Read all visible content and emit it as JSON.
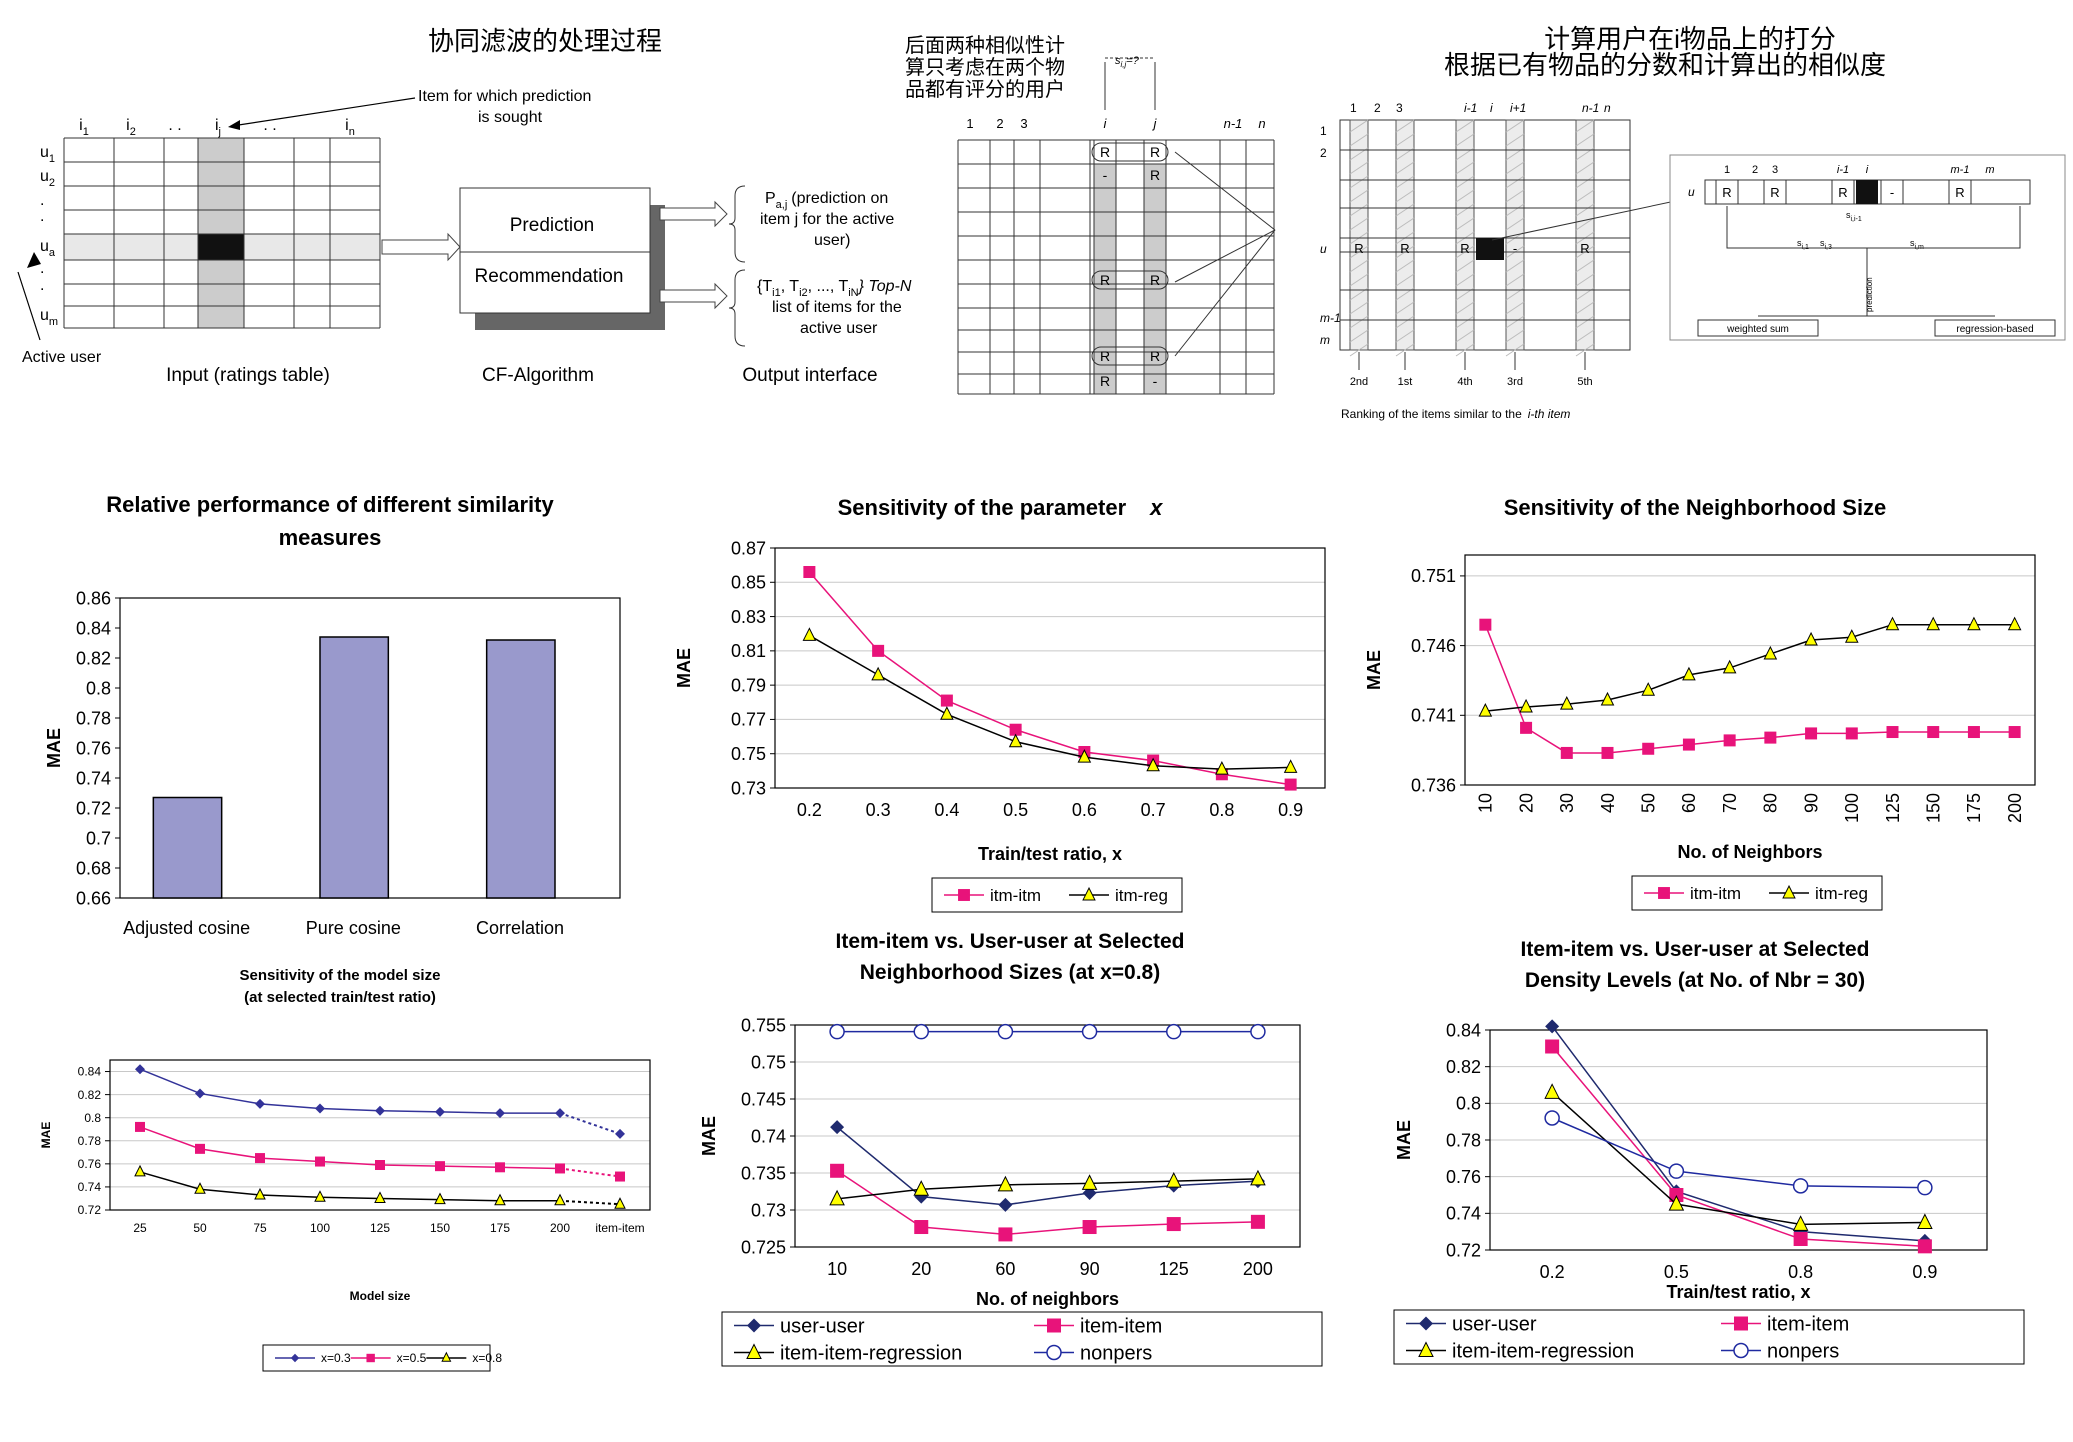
{
  "diagrams": {
    "cf_process": {
      "title": "协同滤波的处理过程",
      "annotation": [
        "Item for which prediction",
        "is sought"
      ],
      "item_labels": [
        "i",
        "i",
        ". .",
        "i",
        ". .",
        "i"
      ],
      "item_subscripts": [
        "1",
        "2",
        "",
        "j",
        "",
        "n"
      ],
      "user_labels": [
        "u",
        "u",
        ".",
        ".",
        "u",
        ".",
        ".",
        "u"
      ],
      "user_subscripts": [
        "1",
        "2",
        "",
        "",
        "a",
        "",
        "",
        "m"
      ],
      "active_user_label": "Active user",
      "input_label": "Input (ratings table)",
      "algorithm_label": "CF-Algorithm",
      "output_label": "Output interface",
      "box_prediction": "Prediction",
      "box_recommendation": "Recommendation",
      "prediction_text": [
        "(prediction on",
        "item j for the active",
        "user)"
      ],
      "prediction_symbol": "P",
      "prediction_symbol_sub": "a,j",
      "topn_text": [
        "{T",
        ", T",
        ", ..., T",
        "} Top-N",
        "list of items for the",
        "active user"
      ]
    },
    "item_similarity": {
      "note": [
        "后面两种相似性计",
        "算只考虑在两个物",
        "品都有评分的用户"
      ],
      "columns": [
        "1",
        "2",
        "3",
        "i",
        "j",
        "n-1",
        "n"
      ],
      "sim_label": "s",
      "sim_sub": "i,j",
      "sim_suffix": "=?",
      "cell_R": "R",
      "cell_dash": "-"
    },
    "prediction_computation": {
      "title_line1": "计算用户在i物品上的打分",
      "title_line2": "根据已有物品的分数和计算出的相似度",
      "columns": [
        "1",
        "2",
        "3",
        "i-1",
        "i",
        "i+1",
        "n-1",
        "n"
      ],
      "rows": [
        "1",
        "2",
        "u",
        "m-1",
        "m"
      ],
      "cell_R": "R",
      "cell_dash": "-",
      "ranks": [
        "2nd",
        "1st",
        "4th",
        "3rd",
        "5th"
      ],
      "ranking_caption": "Ranking of the items similar to the",
      "ranking_caption_item": "i-th item",
      "inset_columns": [
        "1",
        "2",
        "3",
        "i-1",
        "i",
        "m-1",
        "m"
      ],
      "inset_row": "u",
      "inset_sims": [
        "s",
        "s",
        "s",
        "s"
      ],
      "inset_sim_subs": [
        "i,1",
        "i,3",
        "i,i-1",
        "i,m"
      ],
      "inset_prediction": "prediction",
      "inset_boxes": [
        "weighted sum",
        "regression-based"
      ]
    }
  },
  "chart_data": [
    {
      "id": "similarity_measures",
      "type": "bar",
      "title": "Relative performance of different similarity measures",
      "title_lines": [
        "Relative performance of different similarity",
        "measures"
      ],
      "categories": [
        "Adjusted cosine",
        "Pure cosine",
        "Correlation"
      ],
      "values": [
        0.727,
        0.834,
        0.832
      ],
      "xlabel": "",
      "ylabel": "MAE",
      "ylim": [
        0.66,
        0.86
      ],
      "yticks": [
        "0.66",
        "0.68",
        "0.7",
        "0.72",
        "0.74",
        "0.76",
        "0.78",
        "0.8",
        "0.82",
        "0.84",
        "0.86"
      ],
      "bar_color": "#9999cc",
      "grid": false,
      "legend": "none"
    },
    {
      "id": "sensitivity_x",
      "type": "line",
      "title": "Sensitivity of the parameter",
      "title_italic": "x",
      "x": [
        0.2,
        0.3,
        0.4,
        0.5,
        0.6,
        0.7,
        0.8,
        0.9
      ],
      "xticks": [
        "0.2",
        "0.3",
        "0.4",
        "0.5",
        "0.6",
        "0.7",
        "0.8",
        "0.9"
      ],
      "series": [
        {
          "name": "itm-itm",
          "color": "#e8137a",
          "marker": "square",
          "values": [
            0.856,
            0.81,
            0.781,
            0.764,
            0.751,
            0.746,
            0.738,
            0.732
          ]
        },
        {
          "name": "itm-reg",
          "color": "#000000",
          "marker": "triangle",
          "values": [
            0.819,
            0.796,
            0.773,
            0.757,
            0.748,
            0.743,
            0.741,
            0.742
          ]
        }
      ],
      "xlabel": "Train/test ratio, x",
      "ylabel": "MAE",
      "ylim": [
        0.73,
        0.87
      ],
      "yticks": [
        "0.73",
        "0.75",
        "0.77",
        "0.79",
        "0.81",
        "0.83",
        "0.85",
        "0.87"
      ],
      "grid": true,
      "legend": "bottom"
    },
    {
      "id": "neighborhood_size",
      "type": "line",
      "title": "Sensitivity of the Neighborhood Size",
      "categories": [
        "10",
        "20",
        "30",
        "40",
        "50",
        "60",
        "70",
        "80",
        "90",
        "100",
        "125",
        "150",
        "175",
        "200"
      ],
      "series": [
        {
          "name": "itm-itm",
          "color": "#e8137a",
          "marker": "square",
          "values": [
            0.7475,
            0.7401,
            0.7383,
            0.7383,
            0.7386,
            0.7389,
            0.7392,
            0.7394,
            0.7397,
            0.7397,
            0.7398,
            0.7398,
            0.7398,
            0.7398
          ]
        },
        {
          "name": "itm-reg",
          "color": "#000000",
          "marker": "triangle",
          "values": [
            0.7413,
            0.7416,
            0.7418,
            0.7421,
            0.7428,
            0.7439,
            0.7444,
            0.7454,
            0.7464,
            0.7466,
            0.7475,
            0.7475,
            0.7475,
            0.7475
          ]
        }
      ],
      "xlabel": "No. of Neighbors",
      "ylabel": "MAE",
      "ylim": [
        0.736,
        0.7525
      ],
      "yticks": [
        "0.736",
        "0.741",
        "0.746",
        "0.751"
      ],
      "ytick_values": [
        0.736,
        0.741,
        0.746,
        0.751
      ],
      "grid": true,
      "legend": "bottom"
    },
    {
      "id": "model_size",
      "type": "line",
      "title": "Sensitivity of the model size (at selected train/test ratio)",
      "title_lines": [
        "Sensitivity of the model size",
        "(at selected train/test ratio)"
      ],
      "categories": [
        "25",
        "50",
        "75",
        "100",
        "125",
        "150",
        "175",
        "200",
        "item-item"
      ],
      "series": [
        {
          "name": "x=0.3",
          "color": "#333399",
          "marker": "diamond",
          "values": [
            0.842,
            0.821,
            0.812,
            0.808,
            0.806,
            0.805,
            0.804,
            0.804,
            0.786
          ]
        },
        {
          "name": "x=0.5",
          "color": "#e8137a",
          "marker": "square",
          "values": [
            0.792,
            0.773,
            0.765,
            0.762,
            0.759,
            0.758,
            0.757,
            0.756,
            0.749
          ]
        },
        {
          "name": "x=0.8",
          "color": "#000000",
          "marker": "triangle",
          "values": [
            0.753,
            0.738,
            0.733,
            0.731,
            0.73,
            0.729,
            0.728,
            0.728,
            0.725
          ]
        }
      ],
      "xlabel": "Model size",
      "ylabel": "MAE",
      "ylim": [
        0.72,
        0.85
      ],
      "yticks": [
        "0.72",
        "0.74",
        "0.76",
        "0.78",
        "0.8",
        "0.82",
        "0.84"
      ],
      "grid": true,
      "legend": "bottom"
    },
    {
      "id": "item_vs_user_neighborhood",
      "type": "line",
      "title": "Item-item vs. User-user at Selected Neighborhood Sizes (at x=0.8)",
      "title_lines": [
        "Item-item vs. User-user at Selected",
        "Neighborhood Sizes (at x=0.8)"
      ],
      "categories": [
        "10",
        "20",
        "60",
        "90",
        "125",
        "200"
      ],
      "series": [
        {
          "name": "user-user",
          "color": "#1f2a6e",
          "marker": "diamond",
          "values": [
            0.7412,
            0.7318,
            0.7307,
            0.7323,
            0.7333,
            0.7339
          ]
        },
        {
          "name": "item-item",
          "color": "#e8137a",
          "marker": "square",
          "values": [
            0.7353,
            0.7277,
            0.7267,
            0.7277,
            0.7281,
            0.7284
          ]
        },
        {
          "name": "item-item-regression",
          "color": "#000000",
          "marker": "triangle",
          "values": [
            0.7315,
            0.7328,
            0.7334,
            0.7336,
            0.7339,
            0.7342
          ]
        },
        {
          "name": "nonpers",
          "color": "#1f2aa0",
          "marker": "circle",
          "values": [
            0.7541,
            0.7541,
            0.7541,
            0.7541,
            0.7541,
            0.7541
          ]
        }
      ],
      "xlabel": "No. of neighbors",
      "ylabel": "MAE",
      "ylim": [
        0.725,
        0.755
      ],
      "yticks": [
        "0.725",
        "0.73",
        "0.735",
        "0.74",
        "0.745",
        "0.75",
        "0.755"
      ],
      "grid": true,
      "legend": "bottom"
    },
    {
      "id": "item_vs_user_density",
      "type": "line",
      "title": "Item-item vs. User-user at Selected Density Levels (at No. of Nbr = 30)",
      "title_lines": [
        "Item-item vs. User-user at Selected",
        "Density Levels (at No. of Nbr = 30)"
      ],
      "categories": [
        "0.2",
        "0.5",
        "0.8",
        "0.9"
      ],
      "series": [
        {
          "name": "user-user",
          "color": "#1f2a6e",
          "marker": "diamond",
          "values": [
            0.842,
            0.752,
            0.73,
            0.725
          ]
        },
        {
          "name": "item-item",
          "color": "#e8137a",
          "marker": "square",
          "values": [
            0.831,
            0.75,
            0.726,
            0.722
          ]
        },
        {
          "name": "item-item-regression",
          "color": "#000000",
          "marker": "triangle",
          "values": [
            0.806,
            0.745,
            0.734,
            0.735
          ]
        },
        {
          "name": "nonpers",
          "color": "#1f2aa0",
          "marker": "circle",
          "values": [
            0.792,
            0.763,
            0.755,
            0.754
          ]
        }
      ],
      "xlabel": "Train/test ratio, x",
      "ylabel": "MAE",
      "ylim": [
        0.72,
        0.84
      ],
      "yticks": [
        "0.72",
        "0.74",
        "0.76",
        "0.78",
        "0.8",
        "0.82",
        "0.84"
      ],
      "grid": true,
      "legend": "bottom"
    }
  ]
}
